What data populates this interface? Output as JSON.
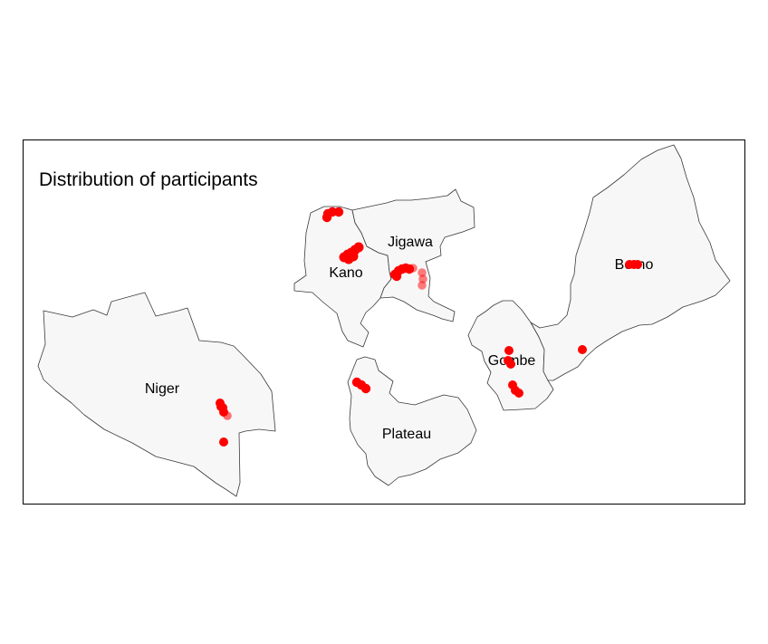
{
  "map": {
    "title": "Distribution of participants",
    "colors": {
      "region_fill": "#f7f7f7",
      "region_stroke": "#3a3a3a",
      "point": "#ff0000"
    },
    "states": [
      {
        "id": "niger",
        "label": "Niger"
      },
      {
        "id": "kano",
        "label": "Kano"
      },
      {
        "id": "jigawa",
        "label": "Jigawa"
      },
      {
        "id": "plateau",
        "label": "Plateau"
      },
      {
        "id": "gombe",
        "label": "Gombe"
      },
      {
        "id": "borno",
        "label": "Borno"
      }
    ]
  }
}
